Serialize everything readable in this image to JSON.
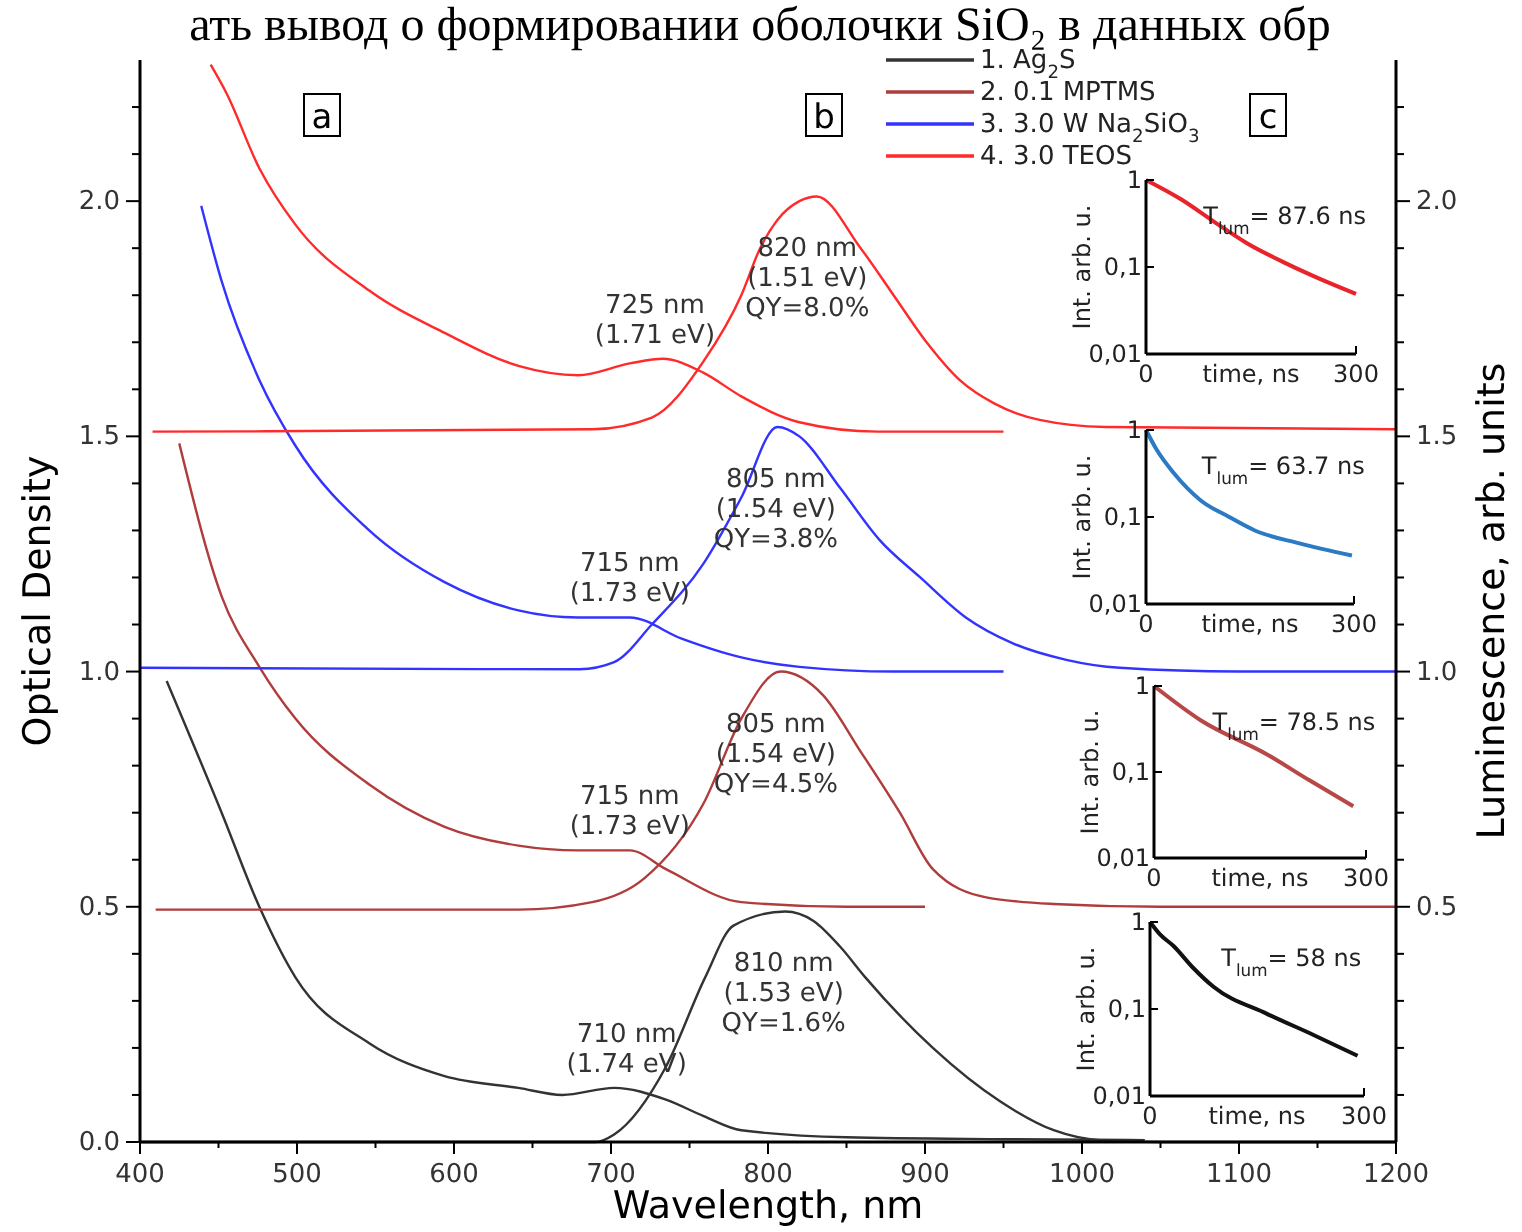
{
  "chart_data": [
    {
      "type": "line",
      "xlabel": "Wavelength, nm",
      "ylabel": "Optical Density",
      "y2label": "Luminescence, arb. units",
      "legend": "top",
      "xlim": [
        400,
        1200
      ],
      "xticks": [
        400,
        {
          "value": 450,
          "label": null
        },
        500,
        {
          "value": 550,
          "label": null
        },
        600,
        {
          "value": 650,
          "label": null
        },
        700,
        {
          "value": 750,
          "label": null
        },
        800,
        {
          "value": 850,
          "label": null
        },
        900,
        {
          "value": 950,
          "label": null
        },
        1000,
        {
          "value": 1050,
          "label": null
        },
        1100,
        {
          "value": 1150,
          "label": null
        },
        1200
      ],
      "ylim": [
        0,
        2.3
      ],
      "yticks": [
        {
          "value": 0,
          "label": "0.0"
        },
        {
          "value": 0.1,
          "label": null
        },
        {
          "value": 0.2,
          "label": null
        },
        {
          "value": 0.3,
          "label": null
        },
        {
          "value": 0.4,
          "label": null
        },
        0.5,
        {
          "value": 0.6,
          "label": null
        },
        {
          "value": 0.7,
          "label": null
        },
        {
          "value": 0.8,
          "label": null
        },
        {
          "value": 0.9,
          "label": null
        },
        {
          "value": 1,
          "label": "1.0"
        },
        {
          "value": 1.1,
          "label": null
        },
        {
          "value": 1.2,
          "label": null
        },
        {
          "value": 1.3,
          "label": null
        },
        {
          "value": 1.4,
          "label": null
        },
        1.5,
        {
          "value": 1.6,
          "label": null
        },
        {
          "value": 1.7,
          "label": null
        },
        {
          "value": 1.8,
          "label": null
        },
        {
          "value": 1.9,
          "label": null
        },
        {
          "value": 2,
          "label": "2.0"
        },
        {
          "value": 2.1,
          "label": null
        },
        {
          "value": 2.2,
          "label": null
        }
      ],
      "y2lim": [
        0,
        2.3
      ],
      "y2ticks": [
        {
          "value": 0.1,
          "label": null
        },
        {
          "value": 0.2,
          "label": null
        },
        {
          "value": 0.3,
          "label": null
        },
        {
          "value": 0.4,
          "label": null
        },
        0.5,
        {
          "value": 0.6,
          "label": null
        },
        {
          "value": 0.7,
          "label": null
        },
        {
          "value": 0.8,
          "label": null
        },
        {
          "value": 0.9,
          "label": null
        },
        {
          "value": 1,
          "label": "1.0"
        },
        {
          "value": 1.1,
          "label": null
        },
        {
          "value": 1.2,
          "label": null
        },
        {
          "value": 1.3,
          "label": null
        },
        {
          "value": 1.4,
          "label": null
        },
        1.5,
        {
          "value": 1.6,
          "label": null
        },
        {
          "value": 1.7,
          "label": null
        },
        {
          "value": 1.8,
          "label": null
        },
        {
          "value": 1.9,
          "label": null
        },
        {
          "value": 2,
          "label": "2.0"
        },
        {
          "value": 2.1,
          "label": null
        },
        {
          "value": 2.2,
          "label": null
        }
      ],
      "series": [
        {
          "name": "1. Ag$_{2}$S",
          "color": "#333333",
          "x": [
            417,
            452,
            476,
            499,
            546,
            594,
            641,
            669,
            702,
            735,
            759,
            783,
            850,
            950,
            1040
          ],
          "values": [
            0.98,
            0.7,
            0.5,
            0.35,
            0.21,
            0.14,
            0.115,
            0.1,
            0.115,
            0.09,
            0.055,
            0.025,
            0.01,
            0.006,
            0.004
          ]
        },
        {
          "name": "2. 0.1 MPTMS",
          "color": "#b03c3c",
          "x": [
            425,
            452,
            476,
            499,
            546,
            594,
            641,
            679,
            712,
            735,
            783,
            850,
            900
          ],
          "values": [
            1.485,
            1.16,
            1.01,
            0.9,
            0.76,
            0.67,
            0.63,
            0.62,
            0.62,
            0.58,
            0.51,
            0.5,
            0.5
          ]
        },
        {
          "name": "3. 3.0 W Na$_{2}$SiO$_{3}$",
          "color": "#3333ff",
          "x": [
            439,
            452,
            476,
            499,
            546,
            594,
            641,
            679,
            712,
            745,
            783,
            820,
            880,
            950
          ],
          "values": [
            1.99,
            1.83,
            1.62,
            1.48,
            1.3,
            1.19,
            1.13,
            1.115,
            1.115,
            1.07,
            1.03,
            1.01,
            1.0,
            1.0
          ]
        },
        {
          "name": "4. 3.0 TEOS",
          "color": "#ff2a2a",
          "x": [
            445,
            455,
            476,
            499,
            546,
            594,
            641,
            679,
            712,
            733,
            759,
            783,
            820,
            870,
            950
          ],
          "values": [
            2.29,
            2.23,
            2.07,
            1.95,
            1.81,
            1.72,
            1.65,
            1.63,
            1.655,
            1.665,
            1.635,
            1.585,
            1.53,
            1.51,
            1.51
          ]
        },
        {
          "color": "#333333",
          "x": [
            400,
            690,
            702,
            735,
            760,
            778,
            811,
            829,
            846,
            862,
            905,
            948,
            982,
            1011,
            1050,
            1200
          ],
          "values": [
            0,
            0,
            0.016,
            0.16,
            0.35,
            0.46,
            0.49,
            0.47,
            0.415,
            0.35,
            0.2,
            0.086,
            0.025,
            0.004,
            0,
            0
          ]
        },
        {
          "color": "#b03c3c",
          "x": [
            410,
            641,
            688,
            721,
            759,
            783,
            808,
            835,
            859,
            884,
            905,
            939,
            982,
            1050,
            1200
          ],
          "values": [
            0.494,
            0.494,
            0.51,
            0.56,
            0.72,
            0.9,
            1.0,
            0.95,
            0.83,
            0.7,
            0.58,
            0.52,
            0.506,
            0.5,
            0.5
          ]
        },
        {
          "color": "#3333ff",
          "x": [
            400,
            680,
            702,
            726,
            759,
            783,
            806,
            820,
            846,
            871,
            897,
            926,
            956,
            990,
            1024,
            1100,
            1200
          ],
          "values": [
            1.008,
            1.005,
            1.02,
            1.1,
            1.23,
            1.37,
            1.52,
            1.5,
            1.39,
            1.28,
            1.2,
            1.115,
            1.06,
            1.025,
            1.008,
            1.0,
            1.0
          ]
        },
        {
          "color": "#ff2a2a",
          "x": [
            408,
            688,
            726,
            759,
            783,
            795,
            806,
            820,
            831,
            859,
            880,
            901,
            922,
            944,
            973,
            1015,
            1200
          ],
          "values": [
            1.51,
            1.515,
            1.54,
            1.66,
            1.8,
            1.9,
            1.96,
            2.0,
            2.01,
            1.9,
            1.8,
            1.7,
            1.62,
            1.57,
            1.535,
            1.52,
            1.515
          ]
        }
      ],
      "annotations": [
        "ать вывод о формировании оболочки SiO₂ в данных обр",
        "a",
        "b",
        "c",
        {
          "text": "710 nm\n(1.74 eV)",
          "x": 710,
          "y": 0.115
        },
        {
          "text": "810 nm\n(1.53 eV)\nQY=1.6%",
          "x": 810,
          "y": 0.49
        },
        {
          "text": "715 nm\n(1.73 eV)",
          "x": 712,
          "y": 0.62
        },
        {
          "text": "805 nm\n(1.54 eV)\nQY=4.5%",
          "x": 805,
          "y": 1.0
        },
        {
          "text": "715 nm\n(1.73 eV)",
          "x": 712,
          "y": 1.115
        },
        {
          "text": "805 nm\n(1.54 eV)\nQY=3.8%",
          "x": 805,
          "y": 1.52
        },
        {
          "text": "725 nm\n(1.71 eV)",
          "x": 728,
          "y": 1.665
        },
        {
          "text": "820 nm\n(1.51 eV)\nQY=8.0%",
          "x": 825,
          "y": 2.01
        }
      ]
    },
    {
      "type": "line",
      "log": "y",
      "xlabel": "time, ns",
      "ylabel": "Int. arb. u.",
      "xlim": [
        0,
        300
      ],
      "xticks": [
        0,
        300
      ],
      "ylim": [
        0.01,
        1
      ],
      "yticks": [
        1,
        {
          "value": 0.1,
          "label": "0,1"
        },
        {
          "value": 0.01,
          "label": "0,01"
        }
      ],
      "annotations": [
        "T$_{lum}$= 87.6 ns"
      ],
      "series": [
        {
          "color": "#e8232a",
          "x": [
            0,
            50,
            100,
            143,
            200,
            250,
            300
          ],
          "values": [
            1.0,
            0.6,
            0.32,
            0.19,
            0.11,
            0.072,
            0.049
          ]
        }
      ]
    },
    {
      "type": "line",
      "log": "y",
      "xlabel": "time, ns",
      "ylabel": "Int. arb. u.",
      "xlim": [
        0,
        300
      ],
      "xticks": [
        0,
        300
      ],
      "ylim": [
        0.01,
        1
      ],
      "yticks": [
        1,
        {
          "value": 0.1,
          "label": "0,1"
        },
        {
          "value": 0.01,
          "label": "0,01"
        }
      ],
      "annotations": [
        "T$_{lum}$= 63.7 ns"
      ],
      "series": [
        {
          "color": "#2b7bc4",
          "x": [
            0,
            15,
            40,
            79,
            120,
            157,
            220,
            297
          ],
          "values": [
            1.0,
            0.6,
            0.32,
            0.155,
            0.1,
            0.07,
            0.05,
            0.036
          ]
        }
      ]
    },
    {
      "type": "line",
      "log": "y",
      "xlabel": "time, ns",
      "ylabel": "Int. arb. u.",
      "xlim": [
        0,
        300
      ],
      "xticks": [
        0,
        300
      ],
      "ylim": [
        0.01,
        1
      ],
      "yticks": [
        1,
        {
          "value": 0.1,
          "label": "0,1"
        },
        {
          "value": 0.01,
          "label": "0,01"
        }
      ],
      "annotations": [
        "T$_{lum}$= 78.5 ns"
      ],
      "series": [
        {
          "color": "#b84848",
          "x": [
            0,
            66,
            160,
            220,
            282
          ],
          "values": [
            1.0,
            0.4,
            0.16,
            0.08,
            0.04
          ]
        }
      ]
    },
    {
      "type": "line",
      "log": "y",
      "xlabel": "time, ns",
      "ylabel": "Int. arb. u.",
      "xlim": [
        0,
        300
      ],
      "xticks": [
        0,
        300
      ],
      "ylim": [
        0.01,
        1
      ],
      "yticks": [
        1,
        {
          "value": 0.1,
          "label": "0,1"
        },
        {
          "value": 0.01,
          "label": "0,01"
        }
      ],
      "annotations": [
        "T$_{lum}$= 58 ns"
      ],
      "series": [
        {
          "color": "#111111",
          "x": [
            0,
            14,
            33,
            60,
            89,
            164,
            230,
            291
          ],
          "values": [
            1.0,
            0.72,
            0.53,
            0.3,
            0.18,
            0.088,
            0.05,
            0.029
          ]
        }
      ]
    }
  ]
}
